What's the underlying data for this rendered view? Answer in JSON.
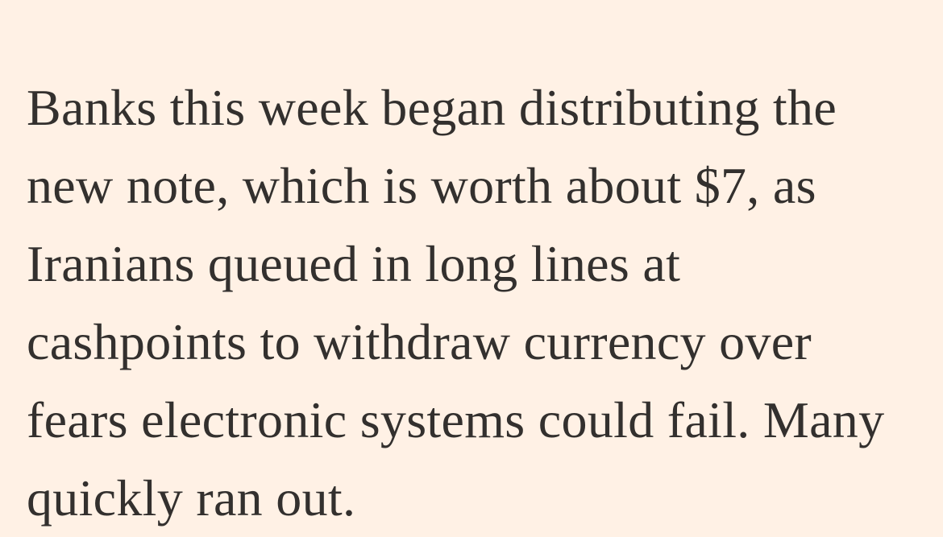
{
  "article": {
    "paragraph_text": "Banks this week began distributing the new note, which is worth about $7, as Iranians queued in long lines at cashpoints to withdraw currency over fears electronic systems could fail. Many quickly ran out.",
    "lines": [
      "Banks this week began distributing the",
      "new note, which is worth about $7, as",
      "Iranians queued in long lines at",
      "cashpoints to withdraw currency over",
      "fears electronic systems could fail. Many",
      "quickly ran out."
    ]
  },
  "colors": {
    "background": "#FFF1E5",
    "text": "#33302E"
  }
}
